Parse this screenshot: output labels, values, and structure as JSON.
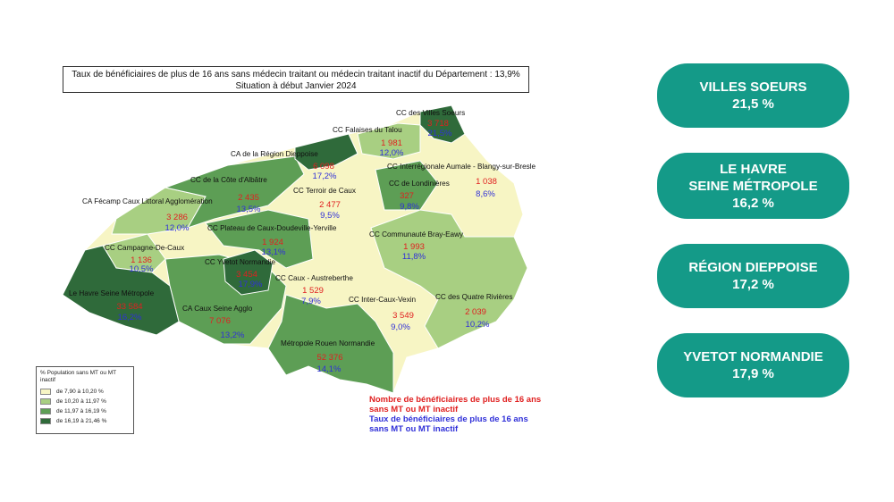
{
  "map": {
    "title_line1": "Taux de bénéficiaires de plus de 16 ans sans médecin traitant ou médecin traitant inactif du Département : 13,9%",
    "title_line2": "Situation à début Janvier 2024",
    "legend": {
      "title": "% Population sans MT ou MT inactif",
      "items": [
        {
          "label": "de 7,90 à 10,20 %",
          "color": "#f7f5c4"
        },
        {
          "label": "de 10,20 à 11,97 %",
          "color": "#a8cf82"
        },
        {
          "label": "de 11,97 à 16,19 %",
          "color": "#5d9e55"
        },
        {
          "label": "de 16,19 à 21,46 %",
          "color": "#2f6a3a"
        }
      ]
    },
    "key": {
      "count_line1": "Nombre de bénéficiaires de plus de 16 ans",
      "count_line2": "sans MT ou MT inactif",
      "rate_line1": "Taux de bénéficiaires de plus de 16 ans",
      "rate_line2": "sans MT ou MT inactif"
    },
    "zones": [
      {
        "name": "CC des Villes Soeurs",
        "count": "3 718",
        "rate": "21,5%"
      },
      {
        "name": "CC Falaises du Talou",
        "count": "1 981",
        "rate": "12,0%"
      },
      {
        "name": "CA de la Région Dieppoise",
        "count": "6 098",
        "rate": "17,2%"
      },
      {
        "name": "CC Interrégionale Aumale - Blangy-sur-Bresle",
        "count": "1 038",
        "rate": "8,6%"
      },
      {
        "name": "CC de Londinières",
        "count": "327",
        "rate": "9,8%"
      },
      {
        "name": "CC de la Côte d'Albâtre",
        "count": "2 435",
        "rate": "13,5%"
      },
      {
        "name": "CC Terroir de Caux",
        "count": "2 477",
        "rate": "9,5%"
      },
      {
        "name": "CA Fécamp Caux Littoral Agglomération",
        "count": "3 286",
        "rate": "12,0%"
      },
      {
        "name": "CC Plateau de Caux-Doudeville-Yerville",
        "count": "1 924",
        "rate": "13,1%"
      },
      {
        "name": "CC Communauté Bray-Eawy",
        "count": "1 993",
        "rate": "11,8%"
      },
      {
        "name": "CC Campagne-De-Caux",
        "count": "1 136",
        "rate": "10,5%"
      },
      {
        "name": "CC Yvetot Normandie",
        "count": "3 454",
        "rate": "17,9%"
      },
      {
        "name": "CC Caux - Austreberthe",
        "count": "1 529",
        "rate": "7,9%"
      },
      {
        "name": "Le Havre Seine Métropole",
        "count": "33 584",
        "rate": "16,2%"
      },
      {
        "name": "CA Caux Seine Agglo",
        "count": "7 076",
        "rate": "13,2%"
      },
      {
        "name": "CC Inter-Caux-Vexin",
        "count": "3 549",
        "rate": "9,0%"
      },
      {
        "name": "CC des Quatre Rivières",
        "count": "2 039",
        "rate": "10,2%"
      },
      {
        "name": "Métropole Rouen Normandie",
        "count": "52 376",
        "rate": "14,1%"
      }
    ]
  },
  "highlights": [
    {
      "line1": "VILLES SOEURS",
      "line2": "",
      "value": "21,5 %"
    },
    {
      "line1": "LE HAVRE",
      "line2": "SEINE MÉTROPOLE",
      "value": "16,2 %"
    },
    {
      "line1": "RÉGION DIEPPOISE",
      "line2": "",
      "value": "17,2 %"
    },
    {
      "line1": "YVETOT NORMANDIE",
      "line2": "",
      "value": "17,9 %"
    }
  ],
  "colors": {
    "accent": "#149a88",
    "count_text": "#e02020",
    "rate_text": "#3030d8"
  }
}
